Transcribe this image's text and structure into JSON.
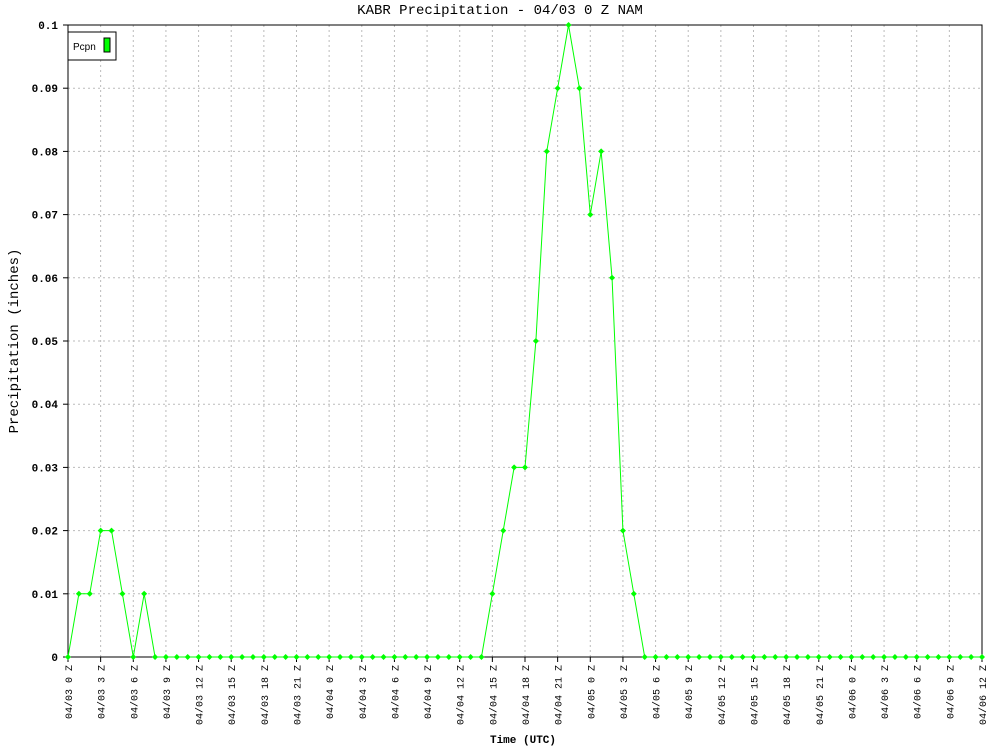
{
  "chart_data": {
    "type": "line",
    "title": "KABR Precipitation - 04/03 0 Z NAM",
    "x_label": "Time (UTC)",
    "y_label": "Precipitation (inches)",
    "categories": [
      "04/03 0 Z",
      null,
      null,
      "04/03 3 Z",
      null,
      null,
      "04/03 6 Z",
      null,
      null,
      "04/03 9 Z",
      null,
      null,
      "04/03 12 Z",
      null,
      null,
      "04/03 15 Z",
      null,
      null,
      "04/03 18 Z",
      null,
      null,
      "04/03 21 Z",
      null,
      null,
      "04/04 0 Z",
      null,
      null,
      "04/04 3 Z",
      null,
      null,
      "04/04 6 Z",
      null,
      null,
      "04/04 9 Z",
      null,
      null,
      "04/04 12 Z",
      null,
      null,
      "04/04 15 Z",
      null,
      null,
      "04/04 18 Z",
      null,
      null,
      "04/04 21 Z",
      null,
      null,
      "04/05 0 Z",
      null,
      null,
      "04/05 3 Z",
      null,
      null,
      "04/05 6 Z",
      null,
      null,
      "04/05 9 Z",
      null,
      null,
      "04/05 12 Z",
      null,
      null,
      "04/05 15 Z",
      null,
      null,
      "04/05 18 Z",
      null,
      null,
      "04/05 21 Z",
      null,
      null,
      "04/06 0 Z",
      null,
      null,
      "04/06 3 Z",
      null,
      null,
      "04/06 6 Z",
      null,
      null,
      "04/06 9 Z",
      null,
      null,
      "04/06 12 Z"
    ],
    "series": [
      {
        "name": "Pcpn",
        "color": "#00ff00",
        "values": [
          0,
          0.01,
          0.01,
          0.02,
          0.02,
          0.01,
          0,
          0.01,
          0,
          0,
          0,
          0,
          0,
          0,
          0,
          0,
          0,
          0,
          0,
          0,
          0,
          0,
          0,
          0,
          0,
          0,
          0,
          0,
          0,
          0,
          0,
          0,
          0,
          0,
          0,
          0,
          0,
          0,
          0,
          0.01,
          0.02,
          0.03,
          0.03,
          0.05,
          0.08,
          0.09,
          0.1,
          0.09,
          0.07,
          0.08,
          0.06,
          0.02,
          0.01,
          0,
          0,
          0,
          0,
          0,
          0,
          0,
          0,
          0,
          0,
          0,
          0,
          0,
          0,
          0,
          0,
          0,
          0,
          0,
          0,
          0,
          0,
          0,
          0,
          0,
          0,
          0,
          0,
          0,
          0,
          0,
          0
        ]
      }
    ],
    "ylim": [
      0,
      0.1
    ],
    "yticks": [
      0,
      0.01,
      0.02,
      0.03,
      0.04,
      0.05,
      0.06,
      0.07,
      0.08,
      0.09,
      0.1
    ],
    "grid": true,
    "legend": "top-left"
  }
}
